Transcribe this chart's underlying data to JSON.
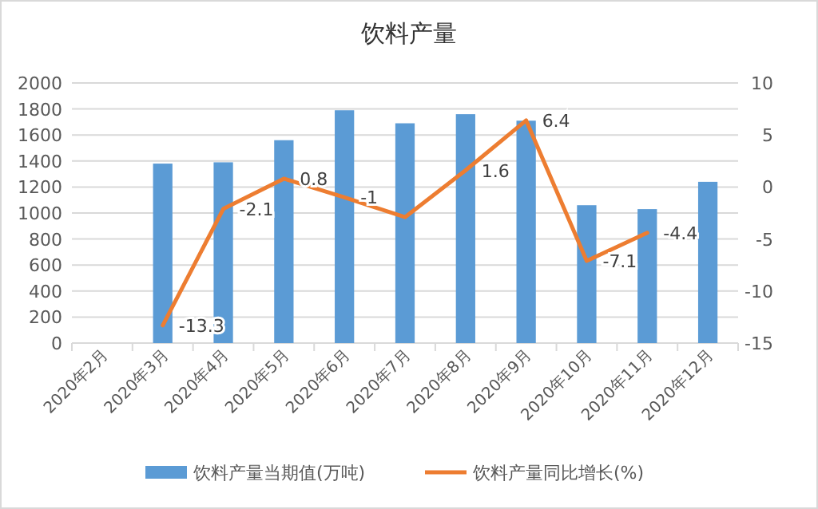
{
  "chart_data": {
    "type": "bar",
    "title": "饮料产量",
    "categories": [
      "2020年2月",
      "2020年3月",
      "2020年4月",
      "2020年5月",
      "2020年6月",
      "2020年7月",
      "2020年8月",
      "2020年9月",
      "2020年10月",
      "2020年11月",
      "2020年12月"
    ],
    "series": [
      {
        "name": "饮料产量当期值(万吨)",
        "color": "#5b9bd5",
        "values": [
          null,
          1380,
          1390,
          1560,
          1790,
          1690,
          1760,
          1710,
          1060,
          1030,
          1240
        ]
      },
      {
        "name": "饮料产量同比增长(%)",
        "type": "line",
        "axis": "y2",
        "color": "#ed7d31",
        "values": [
          null,
          -13.3,
          -2.1,
          0.8,
          -1,
          -2.9,
          1.6,
          6.4,
          -7.1,
          -4.4,
          null
        ],
        "value_labels": [
          null,
          "-13.3",
          "-2.1",
          "0.8",
          "-1",
          null,
          "1.6",
          "6.4",
          "-7.1",
          "-4.4",
          null
        ]
      }
    ],
    "ylim": [
      0,
      2000
    ],
    "yticks": [
      0,
      200,
      400,
      600,
      800,
      1000,
      1200,
      1400,
      1600,
      1800,
      2000
    ],
    "y2lim": [
      -15,
      10
    ],
    "y2ticks": [
      -15,
      -10,
      -5,
      0,
      5,
      10
    ],
    "grid": "y",
    "legend": "bottom",
    "marker": "none"
  }
}
